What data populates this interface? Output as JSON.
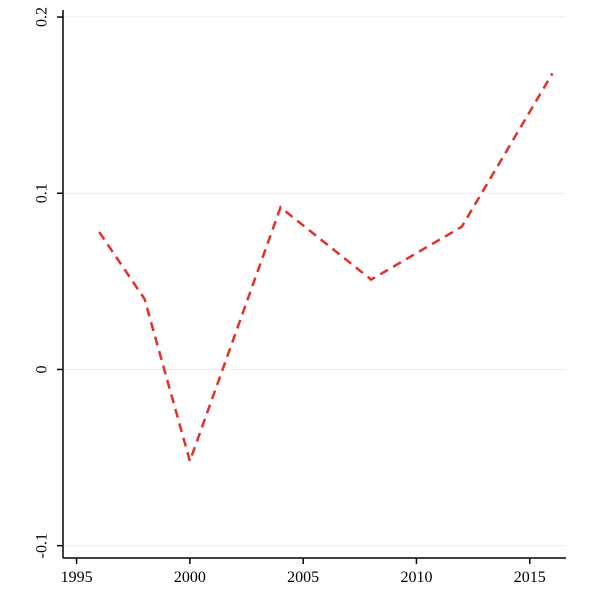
{
  "chart_data": {
    "type": "line",
    "x": [
      1996,
      1998,
      2000,
      2004,
      2008,
      2012,
      2016
    ],
    "series": [
      {
        "color": "#e2302a",
        "values": [
          0.078,
          0.04,
          -0.052,
          0.092,
          0.051,
          0.081,
          0.168
        ]
      }
    ],
    "xlim": [
      1994.4,
      2016.6
    ],
    "xticks": [
      1995,
      2000,
      2005,
      2010,
      2015
    ],
    "ylim": [
      -0.107,
      0.204
    ],
    "yticks": [
      -0.1,
      0,
      0.1,
      0.2
    ],
    "grid": true
  }
}
